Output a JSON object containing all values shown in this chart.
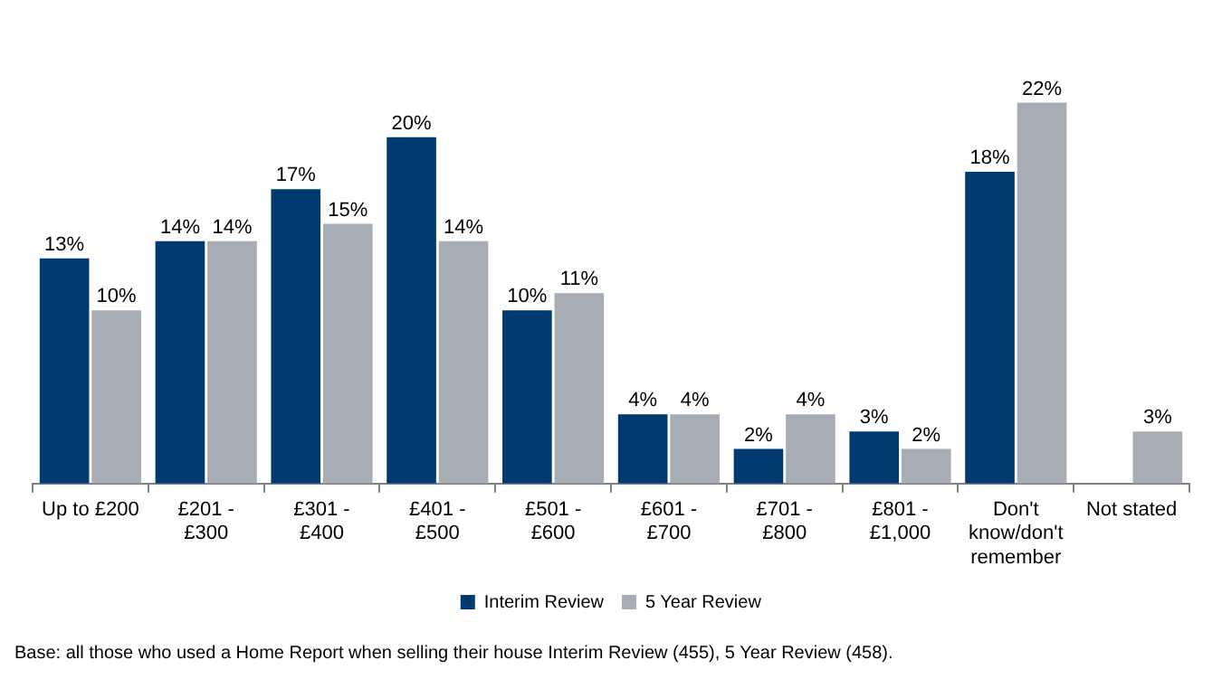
{
  "chart_data": {
    "type": "bar",
    "categories": [
      "Up to £200",
      "£201 - £300",
      "£301 - £400",
      "£401 - £500",
      "£501 - £600",
      "£601 - £700",
      "£701 - £800",
      "£801 - £1,000",
      "Don't know/don't remember",
      "Not stated"
    ],
    "series": [
      {
        "name": "Interim Review",
        "color": "#003a70",
        "values": [
          13,
          14,
          17,
          20,
          10,
          4,
          2,
          3,
          18,
          null
        ],
        "value_labels": [
          "13%",
          "14%",
          "17%",
          "20%",
          "10%",
          "4%",
          "2%",
          "3%",
          "18%",
          null
        ]
      },
      {
        "name": "5 Year Review",
        "color": "#a6adb4",
        "values": [
          10,
          14,
          15,
          14,
          11,
          4,
          4,
          2,
          22,
          3
        ],
        "value_labels": [
          "10%",
          "14%",
          "15%",
          "14%",
          "11%",
          "4%",
          "4%",
          "2%",
          "22%",
          "3%"
        ]
      }
    ],
    "legend": "bottom",
    "annotations": [
      "Base: all those who used a Home Report when selling their house Interim Review (455), 5 Year Review (458)."
    ]
  }
}
